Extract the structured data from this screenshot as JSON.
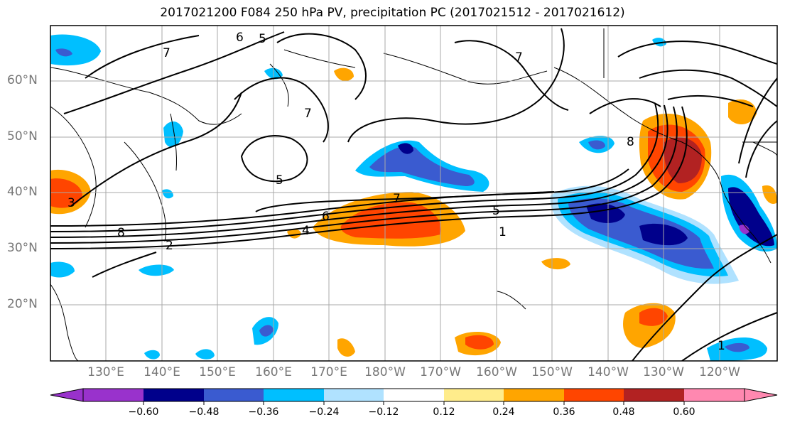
{
  "title": "2017021200 F084 250 hPa PV, precipitation PC (2017021512 - 2017021612)",
  "latitude_labels": [
    "60°N",
    "50°N",
    "40°N",
    "30°N",
    "20°N"
  ],
  "longitude_labels": [
    "130°E",
    "140°E",
    "150°E",
    "160°E",
    "170°E",
    "180°W",
    "170°W",
    "160°W",
    "150°W",
    "140°W",
    "130°W",
    "120°W"
  ],
  "contour_labels": [
    "6",
    "5",
    "7",
    "7",
    "7",
    "8",
    "5",
    "7",
    "6",
    "4",
    "5",
    "1",
    "2",
    "3",
    "8",
    "1"
  ],
  "colorbar": {
    "tick_labels": [
      "−0.60",
      "−0.48",
      "−0.36",
      "−0.24",
      "−0.12",
      "0.12",
      "0.24",
      "0.36",
      "0.48",
      "0.60"
    ],
    "colors": [
      "#9932cc",
      "#00008b",
      "#3a5bd0",
      "#00bfff",
      "#b0e2ff",
      "#ffffff",
      "#ffec8b",
      "#ffa500",
      "#ff4500",
      "#b22222",
      "#ff88b0"
    ]
  }
}
